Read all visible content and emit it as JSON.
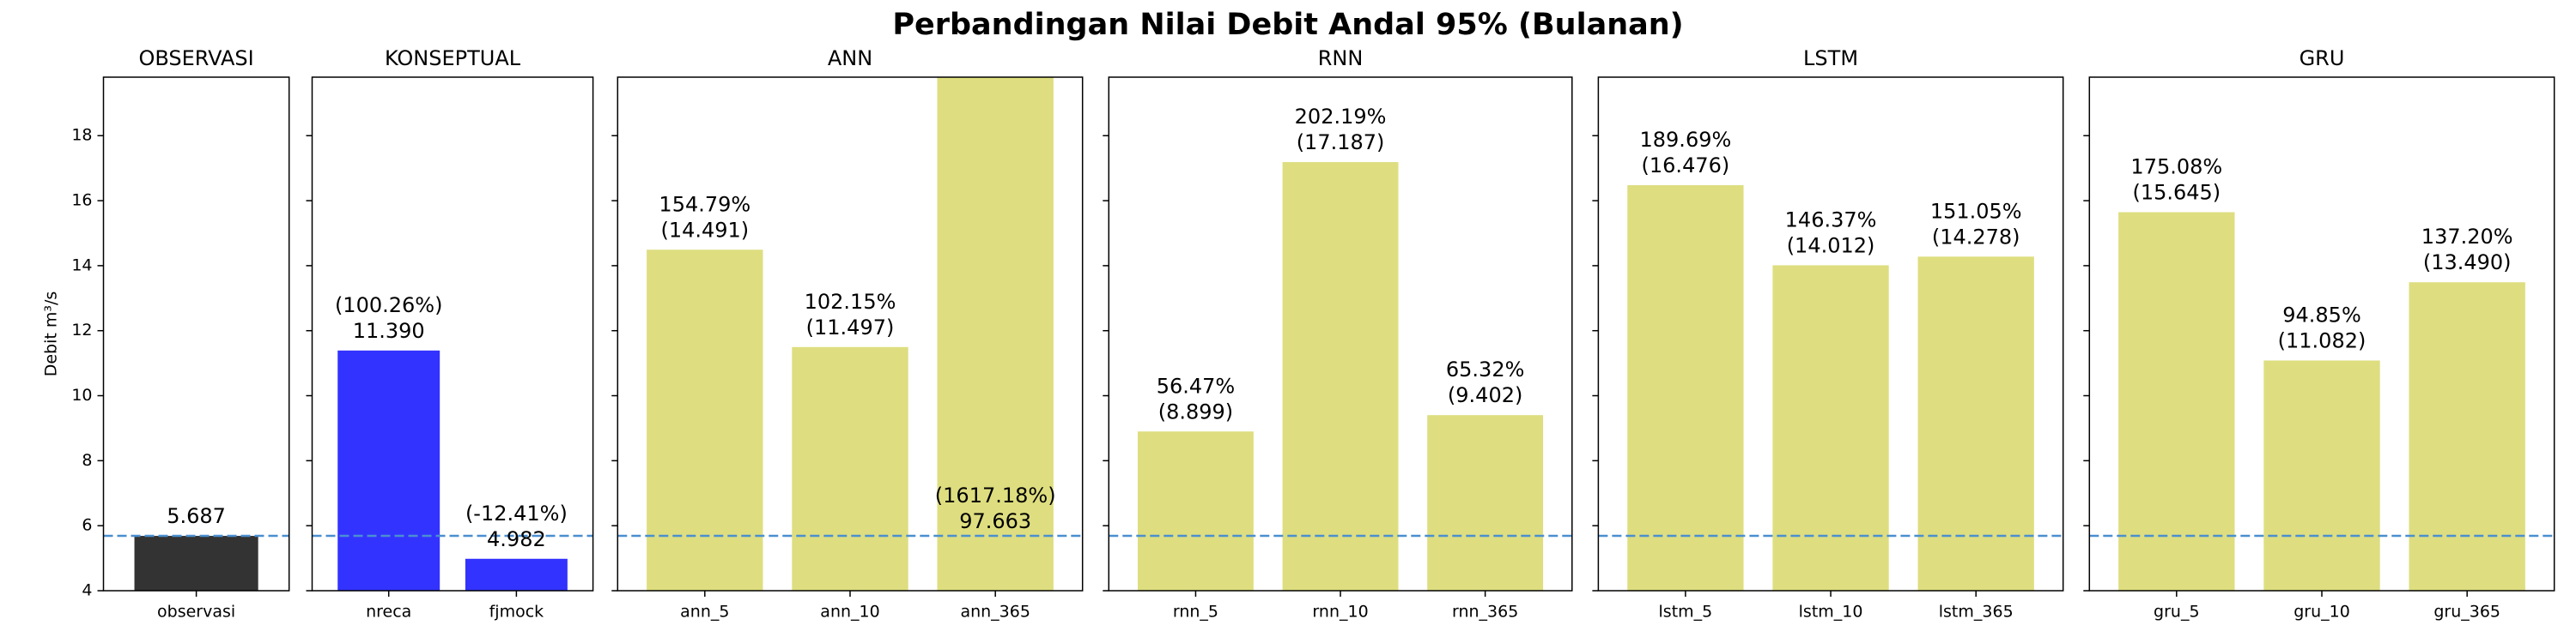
{
  "title": "Perbandingan Nilai Debit Andal 95% (Bulanan)",
  "chart_data": [
    {
      "type": "bar",
      "title": "OBSERVASI",
      "y_label": "Debit m³/s",
      "categories": [
        "observasi"
      ],
      "values": [
        5.687
      ],
      "value_labels": [
        "5.687"
      ],
      "color": "#333333",
      "ylim": [
        4,
        19.8
      ],
      "yticks": [
        4,
        6,
        8,
        10,
        12,
        14,
        16,
        18
      ],
      "reference_line": 5.687
    },
    {
      "type": "bar",
      "title": "KONSEPTUAL",
      "categories": [
        "nreca",
        "fjmock"
      ],
      "values": [
        11.39,
        4.982
      ],
      "value_labels": [
        "11.390",
        "4.982"
      ],
      "percent_labels": [
        "(100.26%)",
        "(-12.41%)"
      ],
      "color": "#3333ff",
      "ylim": [
        4,
        19.8
      ],
      "yticks": [
        4,
        6,
        8,
        10,
        12,
        14,
        16,
        18
      ],
      "reference_line": 5.687
    },
    {
      "type": "bar",
      "title": "ANN",
      "categories": [
        "ann_5",
        "ann_10",
        "ann_365"
      ],
      "values": [
        14.491,
        11.497,
        97.663
      ],
      "value_labels": [
        "(14.491)",
        "(11.497)",
        "97.663"
      ],
      "percent_labels": [
        "154.79%",
        "102.15%",
        "(1617.18%)"
      ],
      "color": "#dede80",
      "ylim": [
        4,
        19.8
      ],
      "yticks": [
        4,
        6,
        8,
        10,
        12,
        14,
        16,
        18
      ],
      "reference_line": 5.687
    },
    {
      "type": "bar",
      "title": "RNN",
      "categories": [
        "rnn_5",
        "rnn_10",
        "rnn_365"
      ],
      "values": [
        8.899,
        17.187,
        9.402
      ],
      "value_labels": [
        "(8.899)",
        "(17.187)",
        "(9.402)"
      ],
      "percent_labels": [
        "56.47%",
        "202.19%",
        "65.32%"
      ],
      "color": "#dede80",
      "ylim": [
        4,
        19.8
      ],
      "yticks": [
        4,
        6,
        8,
        10,
        12,
        14,
        16,
        18
      ],
      "reference_line": 5.687
    },
    {
      "type": "bar",
      "title": "LSTM",
      "categories": [
        "lstm_5",
        "lstm_10",
        "lstm_365"
      ],
      "values": [
        16.476,
        14.012,
        14.278
      ],
      "value_labels": [
        "(16.476)",
        "(14.012)",
        "(14.278)"
      ],
      "percent_labels": [
        "189.69%",
        "146.37%",
        "151.05%"
      ],
      "color": "#dede80",
      "ylim": [
        4,
        19.8
      ],
      "yticks": [
        4,
        6,
        8,
        10,
        12,
        14,
        16,
        18
      ],
      "reference_line": 5.687
    },
    {
      "type": "bar",
      "title": "GRU",
      "categories": [
        "gru_5",
        "gru_10",
        "gru_365"
      ],
      "values": [
        15.645,
        11.082,
        13.49
      ],
      "value_labels": [
        "(15.645)",
        "(11.082)",
        "(13.490)"
      ],
      "percent_labels": [
        "175.08%",
        "94.85%",
        "137.20%"
      ],
      "color": "#dede80",
      "ylim": [
        4,
        19.8
      ],
      "yticks": [
        4,
        6,
        8,
        10,
        12,
        14,
        16,
        18
      ],
      "reference_line": 5.687
    }
  ]
}
